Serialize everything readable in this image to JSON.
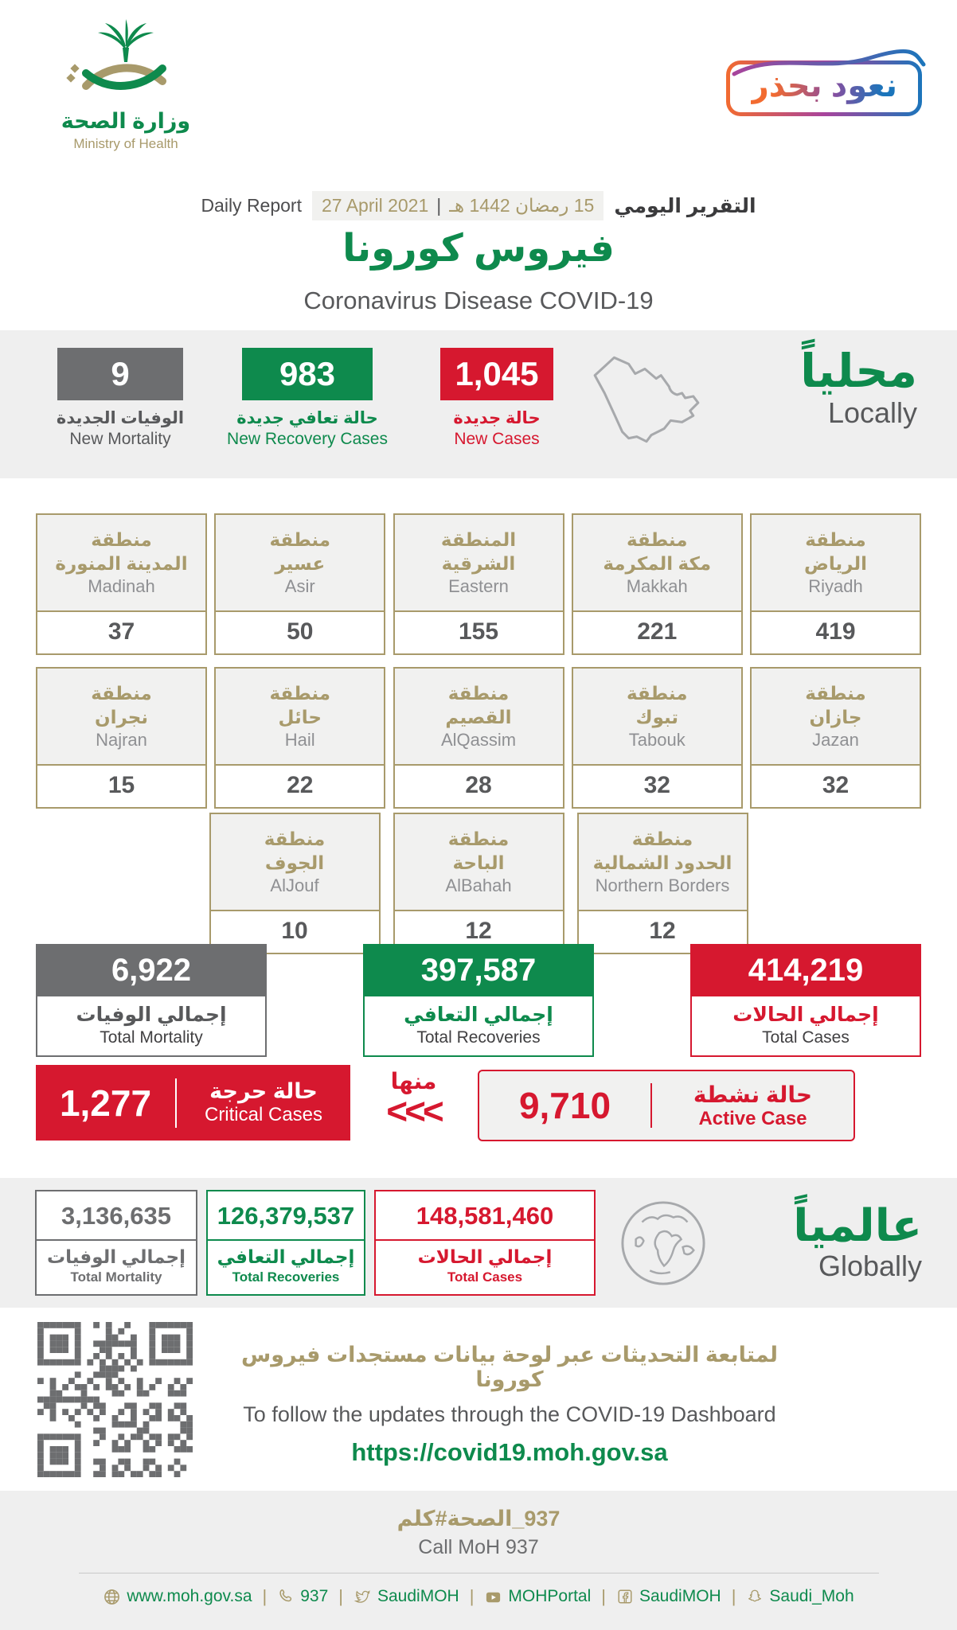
{
  "colors": {
    "green": "#0e8a4d",
    "red": "#d6182f",
    "gray_box": "#6d6e70",
    "gold": "#a89a6b",
    "band": "#efefef"
  },
  "header": {
    "logo": {
      "title_ar": "وزارة الصحة",
      "title_en": "Ministry of Health"
    },
    "badge": {
      "label": "نعود بحذر"
    },
    "report": {
      "daily_en": "Daily Report",
      "date_en": "27 April 2021",
      "separator": "|",
      "date_ar": "15 رمضان 1442 هـ",
      "daily_ar": "التقرير اليومي"
    },
    "title_ar": "فيروس كورونا",
    "title_en": "Coronavirus Disease COVID-19"
  },
  "locally": {
    "title_ar": "محلياً",
    "title_en": "Locally",
    "stats": [
      {
        "id": "new-mortality",
        "value": "9",
        "label_ar": "الوفيات الجديدة",
        "label_en": "New Mortality",
        "color": "#6d6e70",
        "label_color": "#58595b"
      },
      {
        "id": "new-recovery-cases",
        "value": "983",
        "label_ar": "حالة تعافي جديدة",
        "label_en": "New Recovery Cases",
        "color": "#0e8a4d",
        "label_color": "#0e8a4d"
      },
      {
        "id": "new-cases",
        "value": "1,045",
        "label_ar": "حالة جديدة",
        "label_en": "New Cases",
        "color": "#d6182f",
        "label_color": "#d6182f"
      }
    ]
  },
  "regions": {
    "rows": [
      [
        {
          "ar1": "منطقة",
          "ar2": "المدينة المنورة",
          "en": "Madinah",
          "value": "37"
        },
        {
          "ar1": "منطقة",
          "ar2": "عسير",
          "en": "Asir",
          "value": "50"
        },
        {
          "ar1": "المنطقة",
          "ar2": "الشرقية",
          "en": "Eastern",
          "value": "155"
        },
        {
          "ar1": "منطقة",
          "ar2": "مكة المكرمة",
          "en": "Makkah",
          "value": "221"
        },
        {
          "ar1": "منطقة",
          "ar2": "الرياض",
          "en": "Riyadh",
          "value": "419"
        }
      ],
      [
        {
          "ar1": "منطقة",
          "ar2": "نجران",
          "en": "Najran",
          "value": "15"
        },
        {
          "ar1": "منطقة",
          "ar2": "حائل",
          "en": "Hail",
          "value": "22"
        },
        {
          "ar1": "منطقة",
          "ar2": "القصيم",
          "en": "AlQassim",
          "value": "28"
        },
        {
          "ar1": "منطقة",
          "ar2": "تبوك",
          "en": "Tabouk",
          "value": "32"
        },
        {
          "ar1": "منطقة",
          "ar2": "جازان",
          "en": "Jazan",
          "value": "32"
        }
      ],
      [
        {
          "ar1": "منطقة",
          "ar2": "الجوف",
          "en": "AlJouf",
          "value": "10"
        },
        {
          "ar1": "منطقة",
          "ar2": "الباحة",
          "en": "AlBahah",
          "value": "12"
        },
        {
          "ar1": "منطقة",
          "ar2": "الحدود الشمالية",
          "en": "Northern Borders",
          "value": "12"
        }
      ]
    ]
  },
  "totals": [
    {
      "value": "6,922",
      "label_ar": "إجمالي الوفيات",
      "label_en": "Total Mortality",
      "color": "#6d6e70",
      "label_color": "#58595b"
    },
    {
      "value": "397,587",
      "label_ar": "إجمالي التعافي",
      "label_en": "Total Recoveries",
      "color": "#0e8a4d",
      "label_color": "#0e8a4d"
    },
    {
      "value": "414,219",
      "label_ar": "إجمالي الحالات",
      "label_en": "Total Cases",
      "color": "#d6182f",
      "label_color": "#d6182f"
    }
  ],
  "critical": {
    "value": "1,277",
    "label_ar": "حالة حرجة",
    "label_en": "Critical Cases"
  },
  "minha": {
    "label_ar": "منها",
    "chevrons": "<<<"
  },
  "active": {
    "value": "9,710",
    "label_ar": "حالة نشطة",
    "label_en": "Active Case"
  },
  "globally": {
    "title_ar": "عالمياً",
    "title_en": "Globally",
    "boxes": [
      {
        "value": "3,136,635",
        "label_ar": "إجمالي الوفيات",
        "label_en": "Total Mortality",
        "color": "#6d6e70"
      },
      {
        "value": "126,379,537",
        "label_ar": "إجمالي التعافي",
        "label_en": "Total Recoveries",
        "color": "#0e8a4d"
      },
      {
        "value": "148,581,460",
        "label_ar": "إجمالي الحالات",
        "label_en": "Total Cases",
        "color": "#d6182f"
      }
    ]
  },
  "dashboard": {
    "line_ar": "لمتابعة التحديثات عبر لوحة بيانات مستجدات فيروس كورونا",
    "line_en": "To follow the updates through the COVID-19 Dashboard",
    "url": "https://covid19.moh.gov.sa"
  },
  "bottom": {
    "call_parts": [
      "كلم",
      "#",
      "الصحة",
      "_937"
    ],
    "call_en": "Call MoH 937"
  },
  "footer": {
    "separator": "|",
    "items": [
      {
        "icon": "globe-icon",
        "label": "www.moh.gov.sa"
      },
      {
        "icon": "phone-icon",
        "label": "937"
      },
      {
        "icon": "twitter-icon",
        "label": "SaudiMOH"
      },
      {
        "icon": "youtube-icon",
        "label": "MOHPortal"
      },
      {
        "icon": "facebook-icon",
        "label": "SaudiMOH"
      },
      {
        "icon": "snapchat-icon",
        "label": "Saudi_Moh"
      }
    ]
  }
}
